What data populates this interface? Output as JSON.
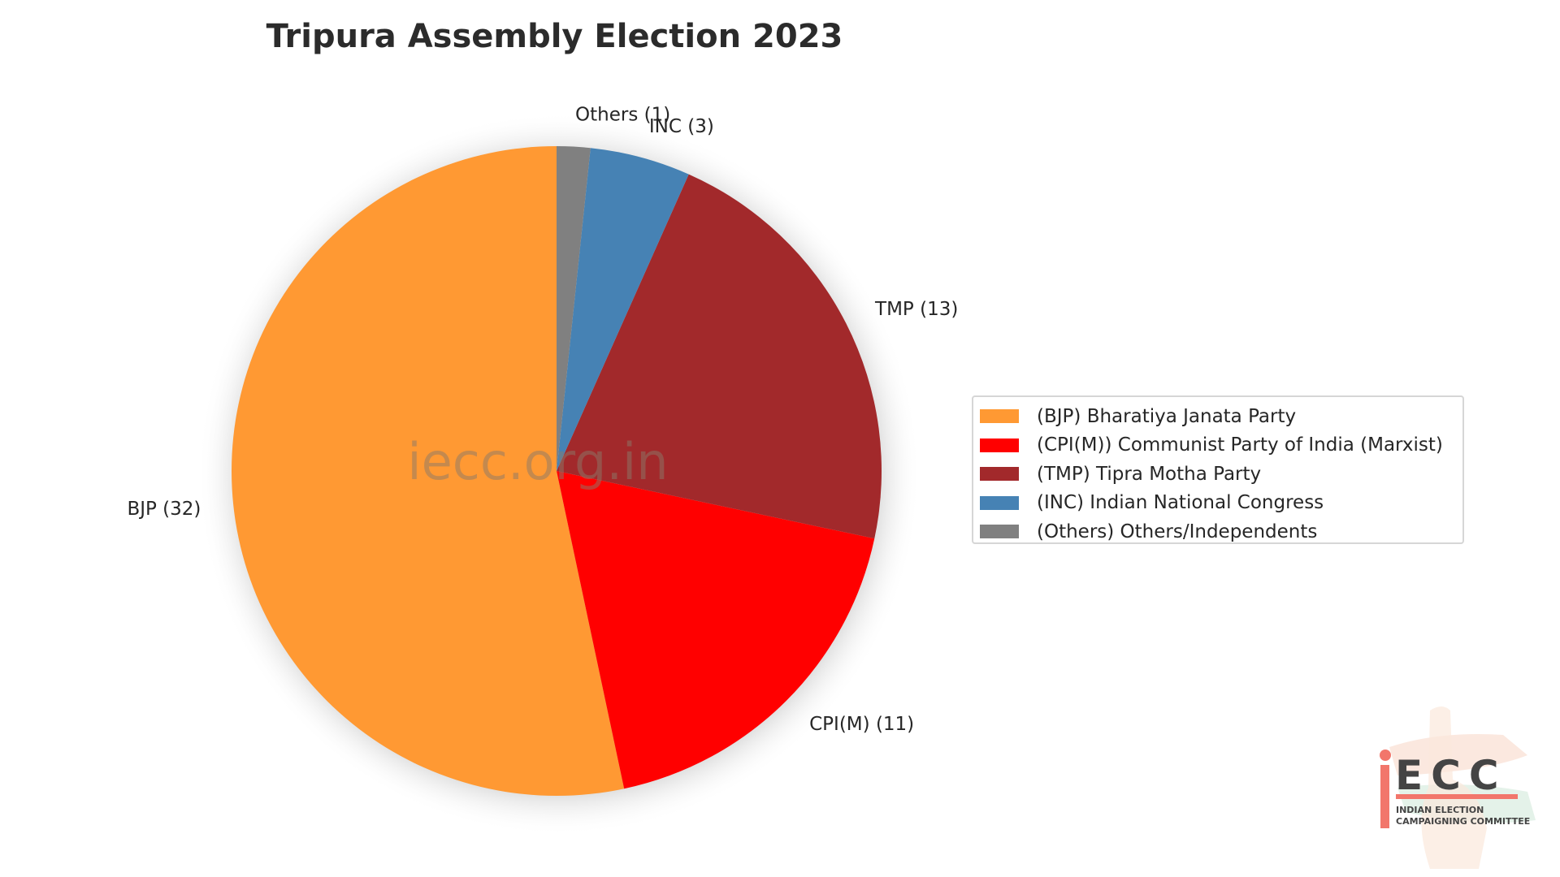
{
  "chart_data": {
    "type": "pie",
    "title": "Tripura Assembly Election 2023",
    "start_angle": 90,
    "direction": "counterclockwise",
    "slices": [
      {
        "label": "BJP (32)",
        "legend": "(BJP) Bharatiya Janata Party",
        "value": 32,
        "color": "#FF9933"
      },
      {
        "label": "CPI(M) (11)",
        "legend": "(CPI(M)) Communist Party of India (Marxist)",
        "value": 11,
        "color": "#FF0000"
      },
      {
        "label": "TMP (13)",
        "legend": "(TMP) Tipra Motha Party",
        "value": 13,
        "color": "#A2292B"
      },
      {
        "label": "INC (3)",
        "legend": "(INC) Indian National Congress",
        "value": 3,
        "color": "#4682B4"
      },
      {
        "label": "Others (1)",
        "legend": "(Others) Others/Independents",
        "value": 1,
        "color": "#808080"
      }
    ],
    "legend_position": "right"
  },
  "watermark": "iecc.org.in",
  "logo": {
    "text": "iECC",
    "subtitle_1": "INDIAN ELECTION",
    "subtitle_2": "CAMPAIGNING COMMITTEE"
  }
}
